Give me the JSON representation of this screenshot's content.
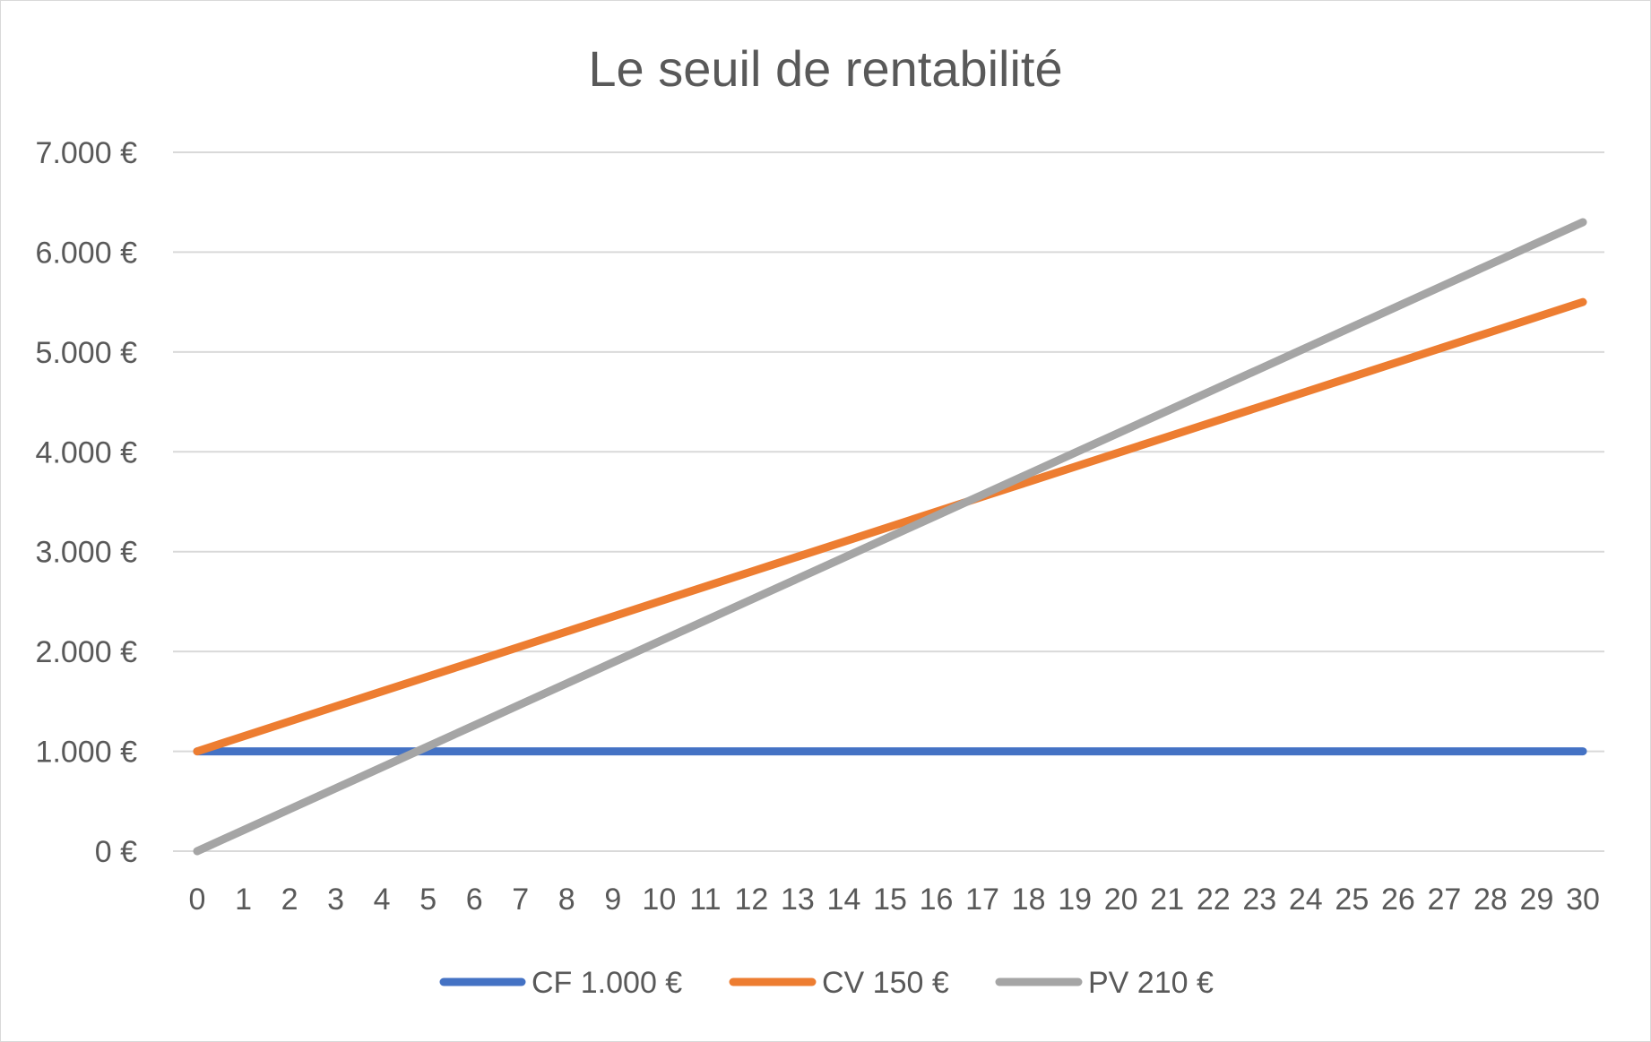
{
  "chart_data": {
    "type": "line",
    "title": "Le seuil de rentabilité",
    "xlabel": "",
    "ylabel": "",
    "x": [
      0,
      1,
      2,
      3,
      4,
      5,
      6,
      7,
      8,
      9,
      10,
      11,
      12,
      13,
      14,
      15,
      16,
      17,
      18,
      19,
      20,
      21,
      22,
      23,
      24,
      25,
      26,
      27,
      28,
      29,
      30
    ],
    "y_ticks": [
      "0 €",
      "1.000 €",
      "2.000 €",
      "3.000 €",
      "4.000 €",
      "5.000 €",
      "6.000 €",
      "7.000 €"
    ],
    "ylim": [
      0,
      7000
    ],
    "grid": true,
    "legend_position": "bottom",
    "series": [
      {
        "name": "CF 1.000 €",
        "color": "#4472c4",
        "values": [
          1000,
          1000,
          1000,
          1000,
          1000,
          1000,
          1000,
          1000,
          1000,
          1000,
          1000,
          1000,
          1000,
          1000,
          1000,
          1000,
          1000,
          1000,
          1000,
          1000,
          1000,
          1000,
          1000,
          1000,
          1000,
          1000,
          1000,
          1000,
          1000,
          1000,
          1000
        ]
      },
      {
        "name": "CV 150 €",
        "color": "#ed7d31",
        "values": [
          1000,
          1150,
          1300,
          1450,
          1600,
          1750,
          1900,
          2050,
          2200,
          2350,
          2500,
          2650,
          2800,
          2950,
          3100,
          3250,
          3400,
          3550,
          3700,
          3850,
          4000,
          4150,
          4300,
          4450,
          4600,
          4750,
          4900,
          5050,
          5200,
          5350,
          5500
        ]
      },
      {
        "name": "PV 210 €",
        "color": "#a5a5a5",
        "values": [
          0,
          210,
          420,
          630,
          840,
          1050,
          1260,
          1470,
          1680,
          1890,
          2100,
          2310,
          2520,
          2730,
          2940,
          3150,
          3360,
          3570,
          3780,
          3990,
          4200,
          4410,
          4620,
          4830,
          5040,
          5250,
          5460,
          5670,
          5880,
          6090,
          6300
        ]
      }
    ]
  }
}
